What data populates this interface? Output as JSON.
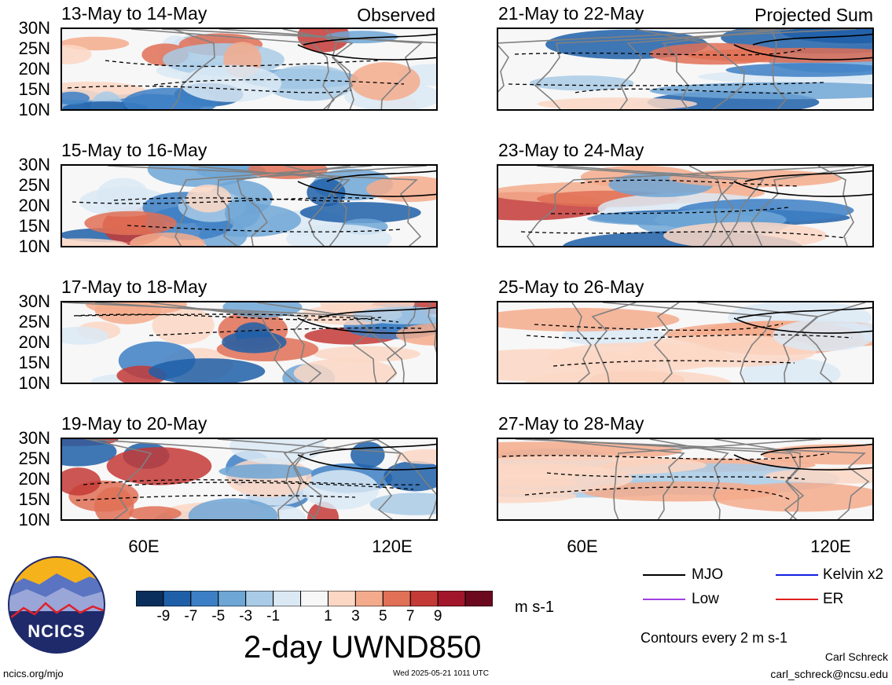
{
  "columns": {
    "left_label": "Observed",
    "right_label": "Projected Sum"
  },
  "panels": [
    {
      "title": "13-May to 14-May",
      "column": "observed"
    },
    {
      "title": "15-May to 16-May",
      "column": "observed"
    },
    {
      "title": "17-May to 18-May",
      "column": "observed"
    },
    {
      "title": "19-May to 20-May",
      "column": "observed"
    },
    {
      "title": "21-May to 22-May",
      "column": "projected"
    },
    {
      "title": "23-May to 24-May",
      "column": "projected"
    },
    {
      "title": "25-May to 26-May",
      "column": "projected"
    },
    {
      "title": "27-May to 28-May",
      "column": "projected"
    }
  ],
  "axes": {
    "lat_labels": [
      "30N",
      "25N",
      "20N",
      "15N",
      "10N"
    ],
    "lon_labels": [
      "60E",
      "120E"
    ]
  },
  "colorbar": {
    "labels": [
      "-9",
      "-7",
      "-5",
      "-3",
      "-1",
      "1",
      "3",
      "5",
      "7",
      "9"
    ],
    "colors": [
      "#0a2f5c",
      "#1f5fa8",
      "#3d7fc4",
      "#6ea6d6",
      "#a9cbe6",
      "#dbe9f4",
      "#f7f7f7",
      "#fbd7c4",
      "#f4ab8c",
      "#e07056",
      "#c43a36",
      "#a1162a",
      "#6b0a1f"
    ],
    "units": "m s-1"
  },
  "title": "2-day UWND850",
  "legend": {
    "items": [
      {
        "label": "MJO",
        "color": "#000000"
      },
      {
        "label": "Kelvin x2",
        "color": "#1020e0"
      },
      {
        "label": "Low",
        "color": "#a040e0"
      },
      {
        "label": "ER",
        "color": "#e02020"
      }
    ],
    "note": "Contours every 2 m s-1"
  },
  "logo": {
    "text": "NCICS"
  },
  "footer": {
    "url": "ncics.org/mjo",
    "timestamp": "Wed 2025-05-21 1011 UTC",
    "author": "Carl Schreck",
    "email": "carl_schreck@ncsu.edu"
  }
}
